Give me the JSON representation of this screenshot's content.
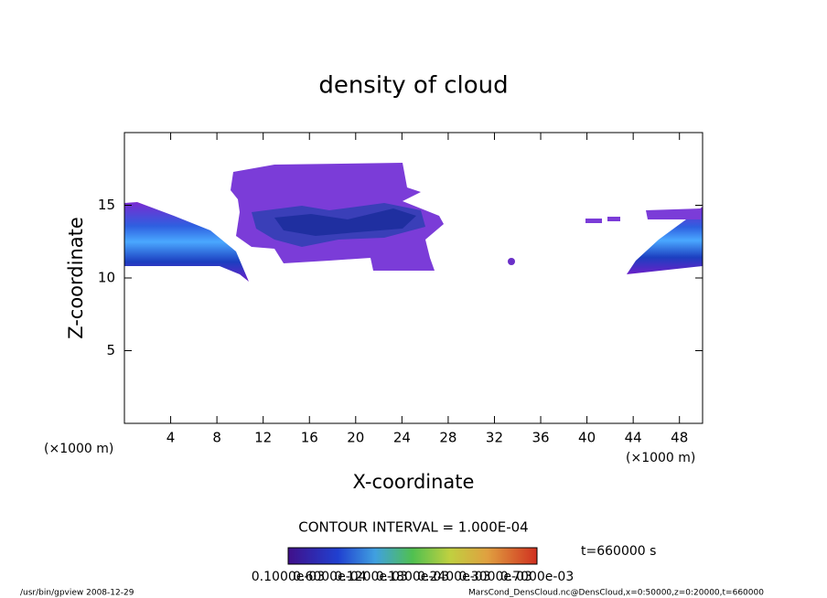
{
  "chart_data": {
    "type": "contour",
    "title": "density of cloud",
    "x_label": "X-coordinate",
    "y_label": "Z-coordinate",
    "x_unit": "(×1000 m)",
    "xlim": [
      0,
      50
    ],
    "xticks": [
      4,
      8,
      12,
      16,
      20,
      24,
      28,
      32,
      36,
      40,
      44,
      48
    ],
    "ylim": [
      0,
      20
    ],
    "yticks": [
      5,
      10,
      15
    ],
    "contour_interval": "CONTOUR INTERVAL = 1.000E-04",
    "time": "t=660000 s",
    "colorbar_labels": [
      "0.1000e-03",
      "0.6000e-04",
      "0.1200e-03",
      "0.1800e-03",
      "0.2400e-03",
      "0.3000e-03",
      "0.7000e-03"
    ],
    "footer_left": "/usr/bin/gpview   2008-12-29",
    "footer_right": "MarsCond_DensCloud.nc@DensCloud,x=0:50000,z=0:20000,t=660000"
  }
}
